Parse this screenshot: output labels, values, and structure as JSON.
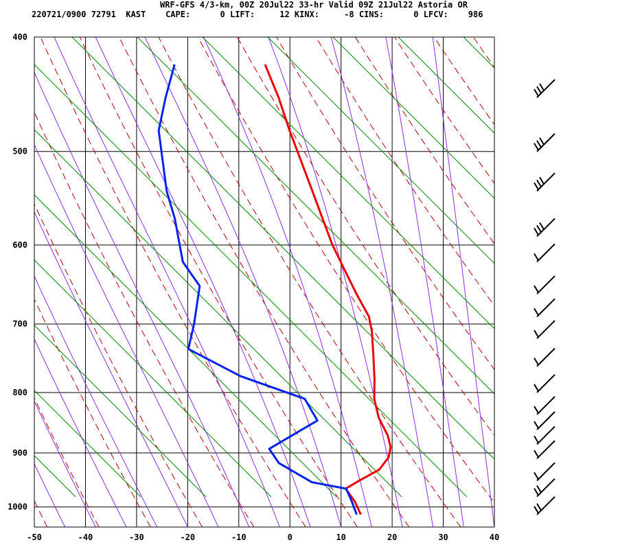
{
  "header": {
    "line1": "WRF-GFS 4/3-km, 00Z 20Jul22 33-hr Valid 09Z 21Jul22 Astoria OR",
    "line2": "220721/0900 72791  KAST    CAPE:      0 LIFT:     12 KINX:     -8 CINS:      0 LFCV:    986"
  },
  "chart_data": {
    "type": "line",
    "subtype": "skew-T log-P sounding",
    "xlim": [
      -50,
      40
    ],
    "ylim": [
      1040,
      400
    ],
    "y_scale": "log",
    "x_ticks": [
      "-50",
      "-40",
      "-30",
      "-20",
      "-10",
      "0",
      "10",
      "20",
      "30",
      "40"
    ],
    "y_ticks": [
      "400",
      "500",
      "600",
      "700",
      "800",
      "900",
      "1000"
    ],
    "grid": true,
    "colors": {
      "temperature": "#ee0000",
      "dewpoint": "#0022ee",
      "dry_adiabats": "#aa0000",
      "moist_adiabats": "#8a2be2",
      "mixing_ratio": "#008800"
    },
    "series": [
      {
        "key": "temperature",
        "points": [
          [
            1015,
            13.5
          ],
          [
            990,
            12.0
          ],
          [
            965,
            9.8
          ],
          [
            950,
            12.2
          ],
          [
            930,
            15.8
          ],
          [
            908,
            17.3
          ],
          [
            890,
            17.4
          ],
          [
            870,
            16.5
          ],
          [
            840,
            14.2
          ],
          [
            810,
            12.8
          ],
          [
            780,
            12.3
          ],
          [
            745,
            11.4
          ],
          [
            710,
            10.4
          ],
          [
            690,
            9.4
          ],
          [
            660,
            6.3
          ],
          [
            630,
            3.3
          ],
          [
            600,
            0.2
          ],
          [
            570,
            -2.5
          ],
          [
            540,
            -5.3
          ],
          [
            510,
            -8.3
          ],
          [
            480,
            -11.5
          ],
          [
            450,
            -14.6
          ],
          [
            422,
            -18.2
          ]
        ]
      },
      {
        "key": "dewpoint",
        "points": [
          [
            1015,
            12.7
          ],
          [
            990,
            11.4
          ],
          [
            965,
            9.9
          ],
          [
            953,
            3.0
          ],
          [
            918,
            -4.0
          ],
          [
            893,
            -6.3
          ],
          [
            872,
            -2.6
          ],
          [
            845,
            2.3
          ],
          [
            810,
            -0.8
          ],
          [
            775,
            -14.0
          ],
          [
            745,
            -22.2
          ],
          [
            735,
            -25.0
          ],
          [
            700,
            -24.6
          ],
          [
            650,
            -24.6
          ],
          [
            620,
            -28.6
          ],
          [
            570,
            -31.4
          ],
          [
            540,
            -33.8
          ],
          [
            480,
            -37.1
          ],
          [
            450,
            -36.7
          ],
          [
            422,
            -35.9
          ]
        ]
      }
    ],
    "wind_barbs_pressure_levels": [
      1015,
      980,
      950,
      910,
      885,
      860,
      835,
      800,
      760,
      720,
      690,
      660,
      620,
      590,
      540,
      500,
      450
    ]
  }
}
